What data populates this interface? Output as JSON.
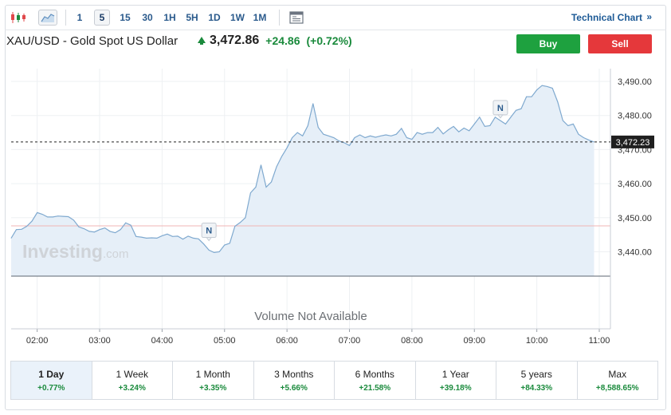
{
  "toolbar": {
    "timeframes": [
      "1",
      "5",
      "15",
      "30",
      "1H",
      "5H",
      "1D",
      "1W",
      "1M"
    ],
    "active_timeframe": "5",
    "technical_chart_label": "Technical Chart",
    "technical_chart_arrow": "»"
  },
  "header": {
    "symbol_name": "XAU/USD - Gold Spot US Dollar",
    "last_price": "3,472.86",
    "change": "+24.86",
    "change_pct": "(+0.72%)",
    "buy_label": "Buy",
    "sell_label": "Sell"
  },
  "colors": {
    "line": "#7fa9cf",
    "area": "#e6eff8",
    "positive": "#1a8a3c",
    "buy": "#1ea13f",
    "sell": "#e5383b",
    "prev_close_line": "#f0b4b4"
  },
  "chart_data": {
    "type": "area",
    "x_labels": [
      "02:00",
      "03:00",
      "04:00",
      "05:00",
      "06:00",
      "07:00",
      "08:00",
      "09:00",
      "10:00",
      "11:00"
    ],
    "y_ticks": [
      3440,
      3450,
      3460,
      3470,
      3480,
      3490
    ],
    "y_tick_labels": [
      "3,440.00",
      "3,450.00",
      "3,460.00",
      "3,470.00",
      "3,480.00",
      "3,490.00"
    ],
    "ylim": [
      3432.5,
      3495
    ],
    "x_start_time": "01:35",
    "x_end_time": "11:00",
    "current_price": 3472.23,
    "current_price_label": "3,472.23",
    "previous_close": 3447.6,
    "watermark": "Investing",
    "watermark_suffix": ".com",
    "volume_note": "Volume Not Available",
    "news_markers": [
      {
        "time": "04:45",
        "value": 3443.5,
        "label": "N"
      },
      {
        "time": "09:25",
        "value": 3479.5,
        "label": "N"
      }
    ],
    "series": [
      {
        "values": [
          [
            "01:35",
            3444.0
          ],
          [
            "01:40",
            3446.5
          ],
          [
            "01:45",
            3446.6
          ],
          [
            "01:50",
            3447.5
          ],
          [
            "01:55",
            3449.0
          ],
          [
            "02:00",
            3451.5
          ],
          [
            "02:05",
            3451.0
          ],
          [
            "02:10",
            3450.2
          ],
          [
            "02:15",
            3450.2
          ],
          [
            "02:20",
            3450.5
          ],
          [
            "02:25",
            3450.4
          ],
          [
            "02:30",
            3450.3
          ],
          [
            "02:35",
            3449.3
          ],
          [
            "02:40",
            3447.3
          ],
          [
            "02:45",
            3446.8
          ],
          [
            "02:50",
            3446.0
          ],
          [
            "02:55",
            3445.8
          ],
          [
            "03:00",
            3446.5
          ],
          [
            "03:05",
            3447.0
          ],
          [
            "03:10",
            3446.0
          ],
          [
            "03:15",
            3445.6
          ],
          [
            "03:20",
            3446.5
          ],
          [
            "03:25",
            3448.5
          ],
          [
            "03:30",
            3447.8
          ],
          [
            "03:35",
            3444.5
          ],
          [
            "03:40",
            3444.3
          ],
          [
            "03:45",
            3444.0
          ],
          [
            "03:50",
            3444.1
          ],
          [
            "03:55",
            3444.0
          ],
          [
            "04:00",
            3444.7
          ],
          [
            "04:05",
            3445.2
          ],
          [
            "04:10",
            3444.5
          ],
          [
            "04:15",
            3444.6
          ],
          [
            "04:20",
            3443.7
          ],
          [
            "04:25",
            3444.6
          ],
          [
            "04:30",
            3444.0
          ],
          [
            "04:35",
            3443.8
          ],
          [
            "04:40",
            3442.3
          ],
          [
            "04:45",
            3440.5
          ],
          [
            "04:50",
            3439.8
          ],
          [
            "04:55",
            3440.0
          ],
          [
            "05:00",
            3442.0
          ],
          [
            "05:05",
            3442.5
          ],
          [
            "05:10",
            3447.5
          ],
          [
            "05:15",
            3448.6
          ],
          [
            "05:20",
            3450.0
          ],
          [
            "05:25",
            3457.3
          ],
          [
            "05:30",
            3459.0
          ],
          [
            "05:35",
            3465.5
          ],
          [
            "05:40",
            3459.0
          ],
          [
            "05:45",
            3460.5
          ],
          [
            "05:50",
            3465.0
          ],
          [
            "05:55",
            3468.0
          ],
          [
            "06:00",
            3470.5
          ],
          [
            "06:05",
            3473.5
          ],
          [
            "06:10",
            3475.0
          ],
          [
            "06:15",
            3474.0
          ],
          [
            "06:20",
            3477.0
          ],
          [
            "06:25",
            3483.5
          ],
          [
            "06:30",
            3476.5
          ],
          [
            "06:35",
            3474.5
          ],
          [
            "06:40",
            3474.0
          ],
          [
            "06:45",
            3473.5
          ],
          [
            "06:50",
            3472.5
          ],
          [
            "06:55",
            3472.0
          ],
          [
            "07:00",
            3471.2
          ],
          [
            "07:05",
            3473.5
          ],
          [
            "07:10",
            3474.3
          ],
          [
            "07:15",
            3473.5
          ],
          [
            "07:20",
            3474.0
          ],
          [
            "07:25",
            3473.6
          ],
          [
            "07:30",
            3474.0
          ],
          [
            "07:35",
            3474.3
          ],
          [
            "07:40",
            3474.0
          ],
          [
            "07:45",
            3474.5
          ],
          [
            "07:50",
            3476.2
          ],
          [
            "07:55",
            3473.5
          ],
          [
            "08:00",
            3473.0
          ],
          [
            "08:05",
            3475.0
          ],
          [
            "08:10",
            3474.5
          ],
          [
            "08:15",
            3475.0
          ],
          [
            "08:20",
            3475.0
          ],
          [
            "08:25",
            3476.5
          ],
          [
            "08:30",
            3474.6
          ],
          [
            "08:35",
            3475.8
          ],
          [
            "08:40",
            3476.8
          ],
          [
            "08:45",
            3475.2
          ],
          [
            "08:50",
            3476.3
          ],
          [
            "08:55",
            3475.5
          ],
          [
            "09:00",
            3477.5
          ],
          [
            "09:05",
            3479.5
          ],
          [
            "09:10",
            3476.8
          ],
          [
            "09:15",
            3477.0
          ],
          [
            "09:20",
            3479.5
          ],
          [
            "09:25",
            3478.5
          ],
          [
            "09:30",
            3477.5
          ],
          [
            "09:35",
            3479.5
          ],
          [
            "09:40",
            3481.5
          ],
          [
            "09:45",
            3482.0
          ],
          [
            "09:50",
            3485.5
          ],
          [
            "09:55",
            3485.5
          ],
          [
            "10:00",
            3487.5
          ],
          [
            "10:05",
            3488.8
          ],
          [
            "10:10",
            3488.5
          ],
          [
            "10:15",
            3488.0
          ],
          [
            "10:20",
            3484.0
          ],
          [
            "10:25",
            3478.5
          ],
          [
            "10:30",
            3477.0
          ],
          [
            "10:35",
            3477.5
          ],
          [
            "10:40",
            3474.5
          ],
          [
            "10:45",
            3473.5
          ],
          [
            "10:50",
            3472.8
          ],
          [
            "10:55",
            3472.23
          ]
        ]
      }
    ]
  },
  "periods": [
    {
      "label": "1 Day",
      "change": "+0.77%",
      "active": true
    },
    {
      "label": "1 Week",
      "change": "+3.24%",
      "active": false
    },
    {
      "label": "1 Month",
      "change": "+3.35%",
      "active": false
    },
    {
      "label": "3 Months",
      "change": "+5.66%",
      "active": false
    },
    {
      "label": "6 Months",
      "change": "+21.58%",
      "active": false
    },
    {
      "label": "1 Year",
      "change": "+39.18%",
      "active": false
    },
    {
      "label": "5 years",
      "change": "+84.33%",
      "active": false
    },
    {
      "label": "Max",
      "change": "+8,588.65%",
      "active": false
    }
  ]
}
